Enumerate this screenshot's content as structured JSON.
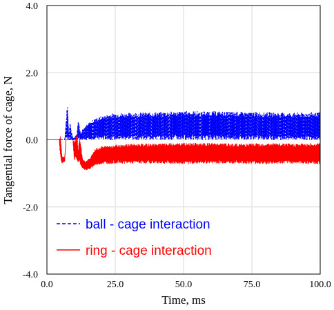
{
  "chart_data": {
    "type": "line",
    "xlabel": "Time, ms",
    "ylabel": "Tangential force of cage, N",
    "xlim": [
      0,
      100
    ],
    "ylim": [
      -4.0,
      4.0
    ],
    "x_ticks": [
      "0.0",
      "25.0",
      "50.0",
      "75.0",
      "100.0"
    ],
    "y_ticks": [
      "4.0",
      "2.0",
      "0.0",
      "-2.0",
      "-4.0"
    ],
    "x_tick_values": [
      0,
      25,
      50,
      75,
      100
    ],
    "y_tick_values": [
      4,
      2,
      0,
      -2,
      -4
    ],
    "grid": true,
    "legend_position": "bottom-left",
    "series": [
      {
        "name": "ball - cage interaction",
        "color": "#0000ff",
        "dash": "dashed",
        "envelope_upper": {
          "x": [
            0,
            6.5,
            7.5,
            8.0,
            8.5,
            9.0,
            9.5,
            10.0,
            11.0,
            11.5,
            12.0,
            12.5,
            13.0,
            14.0,
            15.0,
            16.0,
            17.0,
            18.0,
            20.0,
            22.0,
            25.0,
            30.0,
            40.0,
            50.0,
            60.0,
            70.0,
            80.0,
            90.0,
            100.0
          ],
          "y": [
            0.0,
            0.0,
            1.15,
            0.2,
            0.55,
            0.25,
            0.05,
            0.05,
            0.2,
            0.65,
            0.3,
            0.15,
            0.3,
            0.4,
            0.5,
            0.55,
            0.6,
            0.65,
            0.7,
            0.75,
            0.8,
            0.8,
            0.82,
            0.85,
            0.85,
            0.83,
            0.82,
            0.8,
            0.82
          ]
        },
        "envelope_lower": {
          "x": [
            0,
            100.0
          ],
          "y": [
            0.0,
            0.0
          ]
        }
      },
      {
        "name": "ring - cage interaction",
        "color": "#ff0000",
        "dash": "solid",
        "envelope_upper": {
          "x": [
            0,
            4.5,
            5.0,
            5.5,
            6.5,
            7.0,
            9.5,
            10.0,
            11.0,
            11.5,
            12.0,
            13.0,
            14.0,
            15.0,
            16.0,
            17.0,
            18.0,
            20.0,
            25.0,
            30.0,
            40.0,
            50.0,
            60.0,
            70.0,
            80.0,
            90.0,
            100.0
          ],
          "y": [
            0.0,
            0.0,
            0.15,
            -0.5,
            -0.5,
            0.0,
            0.0,
            -0.05,
            0.15,
            -0.3,
            0.15,
            -0.55,
            -0.65,
            -0.6,
            -0.5,
            -0.35,
            -0.25,
            -0.2,
            -0.15,
            -0.12,
            -0.12,
            -0.1,
            -0.1,
            -0.12,
            -0.1,
            -0.12,
            -0.1
          ]
        },
        "envelope_lower": {
          "x": [
            0,
            4.5,
            5.0,
            5.5,
            6.5,
            7.0,
            9.5,
            10.0,
            11.0,
            11.5,
            12.0,
            13.0,
            14.0,
            15.0,
            16.0,
            17.0,
            18.0,
            20.0,
            25.0,
            30.0,
            40.0,
            50.0,
            60.0,
            70.0,
            80.0,
            90.0,
            100.0
          ],
          "y": [
            0.0,
            0.0,
            -0.6,
            -0.7,
            -0.65,
            0.0,
            0.0,
            -0.6,
            -0.6,
            -0.7,
            -0.7,
            -0.85,
            -0.9,
            -0.9,
            -0.85,
            -0.8,
            -0.75,
            -0.72,
            -0.7,
            -0.7,
            -0.7,
            -0.72,
            -0.7,
            -0.7,
            -0.72,
            -0.7,
            -0.72
          ]
        }
      }
    ]
  }
}
